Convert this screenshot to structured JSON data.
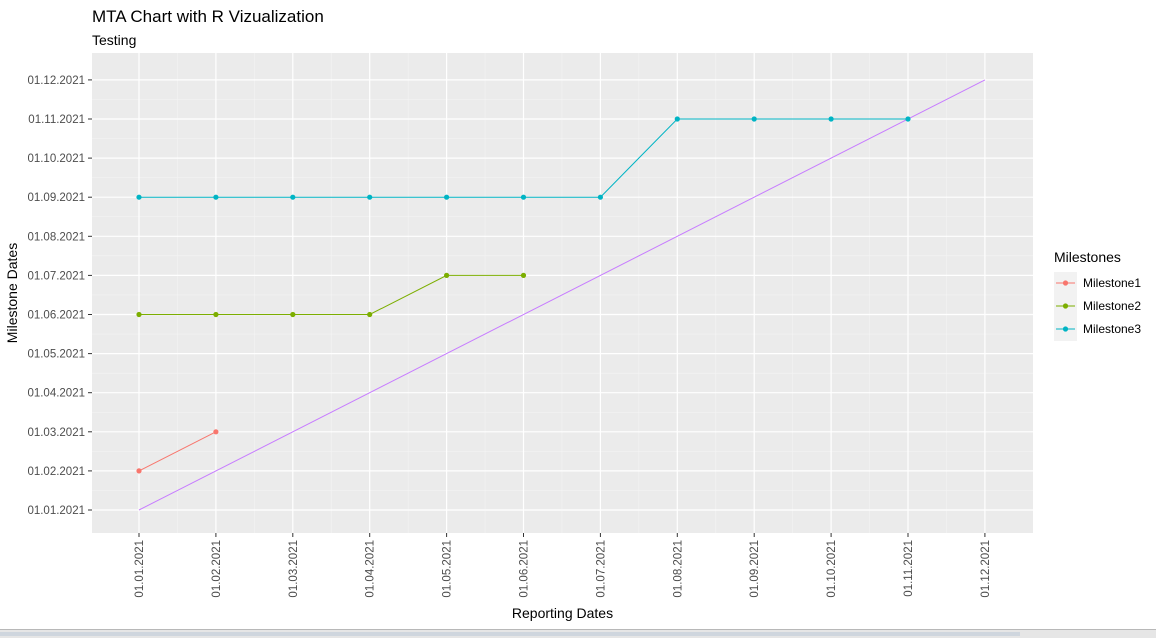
{
  "chart_data": {
    "type": "line",
    "title": "MTA Chart with R Vizualization",
    "subtitle": "Testing",
    "xlabel": "Reporting Dates",
    "ylabel": "Milestone Dates",
    "x_ticks": [
      "01.01.2021",
      "01.02.2021",
      "01.03.2021",
      "01.04.2021",
      "01.05.2021",
      "01.06.2021",
      "01.07.2021",
      "01.08.2021",
      "01.09.2021",
      "01.10.2021",
      "01.11.2021",
      "01.12.2021"
    ],
    "y_ticks": [
      "01.01.2021",
      "01.02.2021",
      "01.03.2021",
      "01.04.2021",
      "01.05.2021",
      "01.06.2021",
      "01.07.2021",
      "01.08.2021",
      "01.09.2021",
      "01.10.2021",
      "01.11.2021",
      "01.12.2021"
    ],
    "legend": {
      "title": "Milestones",
      "position": "right"
    },
    "grid": true,
    "series": [
      {
        "name": "Milestone1",
        "color": "#F8766D",
        "points": [
          {
            "x": "01.01.2021",
            "y": "01.02.2021"
          },
          {
            "x": "01.02.2021",
            "y": "01.03.2021"
          }
        ]
      },
      {
        "name": "Milestone2",
        "color": "#7CAE00",
        "points": [
          {
            "x": "01.01.2021",
            "y": "01.06.2021"
          },
          {
            "x": "01.02.2021",
            "y": "01.06.2021"
          },
          {
            "x": "01.03.2021",
            "y": "01.06.2021"
          },
          {
            "x": "01.04.2021",
            "y": "01.06.2021"
          },
          {
            "x": "01.05.2021",
            "y": "01.07.2021"
          },
          {
            "x": "01.06.2021",
            "y": "01.07.2021"
          }
        ]
      },
      {
        "name": "Milestone3",
        "color": "#00B4C4",
        "points": [
          {
            "x": "01.01.2021",
            "y": "01.09.2021"
          },
          {
            "x": "01.02.2021",
            "y": "01.09.2021"
          },
          {
            "x": "01.03.2021",
            "y": "01.09.2021"
          },
          {
            "x": "01.04.2021",
            "y": "01.09.2021"
          },
          {
            "x": "01.05.2021",
            "y": "01.09.2021"
          },
          {
            "x": "01.06.2021",
            "y": "01.09.2021"
          },
          {
            "x": "01.07.2021",
            "y": "01.09.2021"
          },
          {
            "x": "01.08.2021",
            "y": "01.11.2021"
          },
          {
            "x": "01.09.2021",
            "y": "01.11.2021"
          },
          {
            "x": "01.10.2021",
            "y": "01.11.2021"
          },
          {
            "x": "01.11.2021",
            "y": "01.11.2021"
          }
        ]
      }
    ],
    "reference_line": {
      "color": "#C77CFF",
      "from": {
        "x": "01.01.2021",
        "y": "01.01.2021"
      },
      "to": {
        "x": "01.12.2021",
        "y": "01.12.2021"
      }
    }
  }
}
